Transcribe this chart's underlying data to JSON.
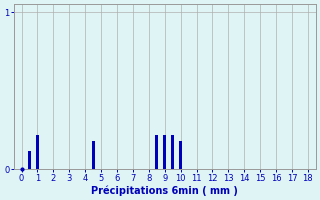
{
  "x_values": [
    0.5,
    1.0,
    4.5,
    8.5,
    9.0,
    9.5,
    10.0
  ],
  "y_values": [
    0.12,
    0.22,
    0.18,
    0.22,
    0.22,
    0.22,
    0.18
  ],
  "bar_width": 0.18,
  "bar_color": "#0000bb",
  "bg_color": "#dff5f5",
  "grid_color": "#b0b0b0",
  "xlim": [
    -0.5,
    18.5
  ],
  "ylim": [
    0,
    1.05
  ],
  "yticks": [
    0,
    1
  ],
  "ytick_labels": [
    "0",
    "1"
  ],
  "xticks": [
    0,
    1,
    2,
    3,
    4,
    5,
    6,
    7,
    8,
    9,
    10,
    11,
    12,
    13,
    14,
    15,
    16,
    17,
    18
  ],
  "xlabel": "Précipitations 6min ( mm )",
  "xlabel_color": "#0000bb",
  "tick_color": "#0000bb",
  "spine_color": "#999999",
  "tick_fontsize": 6,
  "xlabel_fontsize": 7
}
